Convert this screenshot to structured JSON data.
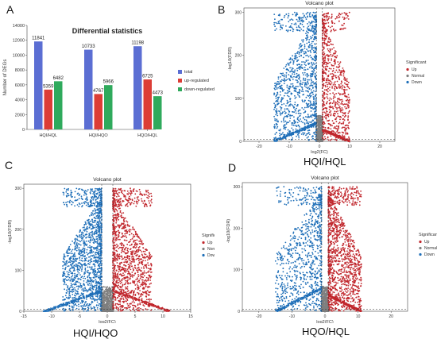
{
  "panels": {
    "A": "A",
    "B": "B",
    "C": "C",
    "D": "D"
  },
  "subtitles": {
    "b": "HQI/HQL",
    "c": "HQI/HQO",
    "d": "HQO/HQL"
  },
  "chart_data": [
    {
      "type": "bar",
      "title": "Differential statistics",
      "ylabel": "Number of DEGs",
      "ylim": [
        0,
        14000
      ],
      "yticks": [
        0,
        2000,
        4000,
        6000,
        8000,
        10000,
        12000,
        14000
      ],
      "categories": [
        "HQI/HQL",
        "HQI/HQO",
        "HQO/HQL"
      ],
      "series": [
        {
          "name": "total",
          "color": "#5b6ed3",
          "values": [
            11841,
            10733,
            11198
          ]
        },
        {
          "name": "up-regulated",
          "color": "#dc3d36",
          "values": [
            5359,
            4767,
            6725
          ]
        },
        {
          "name": "down-regulated",
          "color": "#2faa5c",
          "values": [
            6482,
            5966,
            4473
          ]
        }
      ],
      "legend": "right"
    },
    {
      "type": "scatter",
      "title": "Volcano plot",
      "xlabel": "log2(FC)",
      "ylabel": "-log10(FDR)",
      "xlim": [
        -25,
        25
      ],
      "xticks": [
        -20,
        -10,
        0,
        10,
        20
      ],
      "ylim": [
        0,
        310
      ],
      "yticks": [
        0,
        100,
        200,
        300
      ],
      "threshold_x": [
        -1,
        1
      ],
      "legend_title": "Significant",
      "legend": [
        "Up",
        "Normal",
        "Down"
      ],
      "colors": {
        "Up": "#c1272d",
        "Normal": "#7f7f7f",
        "Down": "#1f6fb8"
      }
    },
    {
      "type": "scatter",
      "title": "Volcano plot",
      "xlabel": "log2(FC)",
      "ylabel": "-log10(FDR)",
      "xlim": [
        -15,
        15
      ],
      "xticks": [
        -15,
        -10,
        -5,
        0,
        5,
        10,
        15
      ],
      "ylim": [
        0,
        310
      ],
      "yticks": [
        0,
        100,
        200,
        300
      ],
      "threshold_x": [
        -1,
        1
      ],
      "legend_title": "Significant",
      "legend": [
        "Up",
        "Normal",
        "Down"
      ],
      "colors": {
        "Up": "#c1272d",
        "Normal": "#7f7f7f",
        "Down": "#1f6fb8"
      }
    },
    {
      "type": "scatter",
      "title": "Volcano plot",
      "xlabel": "log2(FC)",
      "ylabel": "-log10(FDR)",
      "xlim": [
        -25,
        25
      ],
      "xticks": [
        -20,
        -10,
        0,
        10,
        20
      ],
      "ylim": [
        0,
        310
      ],
      "yticks": [
        0,
        100,
        200,
        300
      ],
      "threshold_x": [
        -1,
        1
      ],
      "legend_title": "Significant",
      "legend": [
        "Up",
        "Normal",
        "Down"
      ],
      "colors": {
        "Up": "#c1272d",
        "Normal": "#7f7f7f",
        "Down": "#1f6fb8"
      }
    }
  ]
}
